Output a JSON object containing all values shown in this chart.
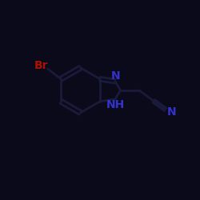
{
  "background_color": "#0a0a1a",
  "bond_color": "#1a1a3a",
  "atom_colors": {
    "N": "#3333cc",
    "NH": "#3333cc",
    "Br": "#aa1100",
    "C": "#1a1a3a"
  },
  "bond_lw": 2.0,
  "figsize": [
    2.5,
    2.5
  ],
  "dpi": 100
}
